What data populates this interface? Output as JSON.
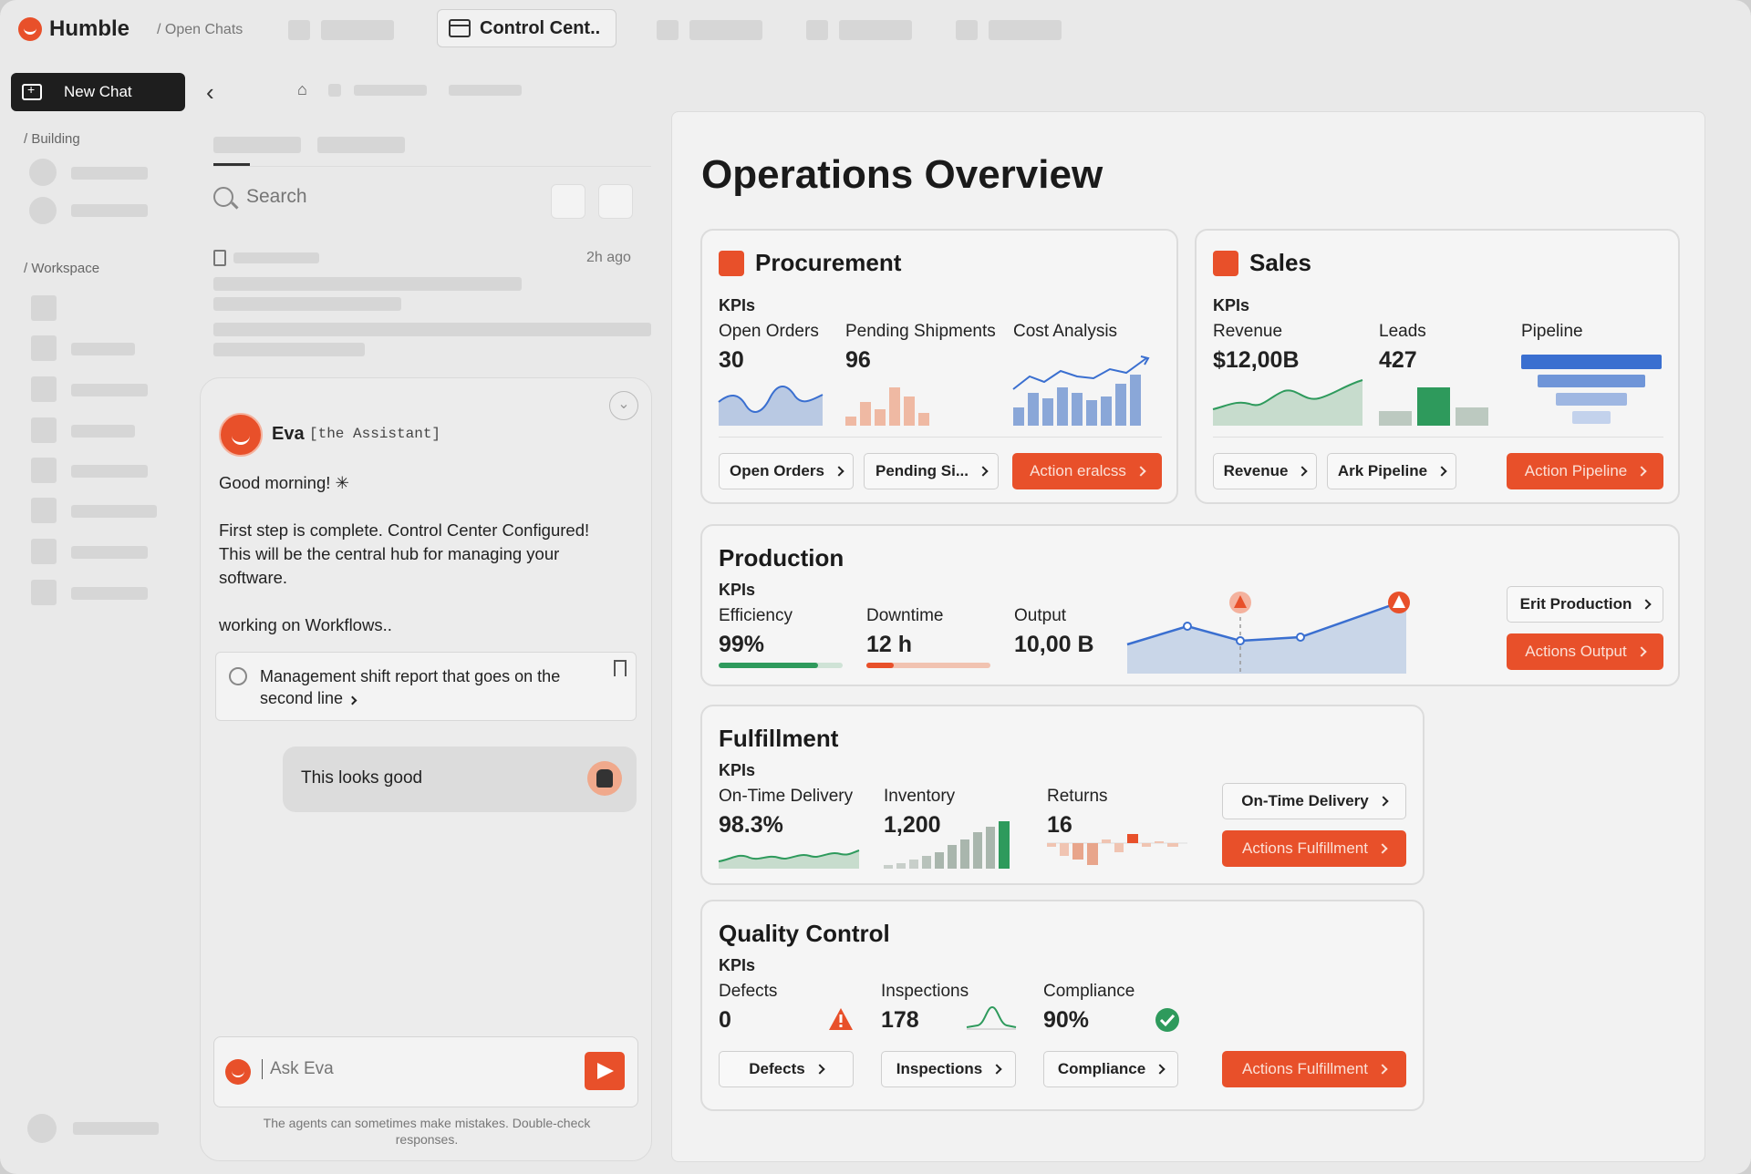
{
  "app": {
    "name": "Humble",
    "breadcrumb": "/ Open Chats",
    "active_tab": "Control Cent.."
  },
  "sidebar": {
    "new_chat": "New Chat",
    "section_building": "/ Building",
    "section_workspace": "/ Workspace"
  },
  "list": {
    "search_placeholder": "Search",
    "item_time": "2h ago"
  },
  "chat": {
    "assistant_name": "Eva",
    "assistant_role": "[the Assistant]",
    "greeting": "Good morning! ✳",
    "message": "First step is complete. Control Center Configured! This will be the central hub for managing your software.",
    "status": "working on Workflows..",
    "card_text": "Management shift report that goes on the second line",
    "user_message": "This looks good",
    "input_placeholder": "Ask Eva",
    "disclaimer": "The agents can sometimes make mistakes. Double-check responses."
  },
  "dashboard": {
    "title": "Operations Overview",
    "procurement": {
      "title": "Procurement",
      "kpis": "KPIs",
      "k1_label": "Open Orders",
      "k1_value": "30",
      "k2_label": "Pending Shipments",
      "k2_value": "96",
      "k3_label": "Cost Analysis",
      "b1": "Open Orders",
      "b2": "Pending Si...",
      "b3": "Action eralcss"
    },
    "sales": {
      "title": "Sales",
      "kpis": "KPIs",
      "k1_label": "Revenue",
      "k1_value": "$12,00B",
      "k2_label": "Leads",
      "k2_value": "427",
      "k3_label": "Pipeline",
      "b1": "Revenue",
      "b2": "Ark Pipeline",
      "b3": "Action Pipeline"
    },
    "production": {
      "title": "Production",
      "kpis": "KPIs",
      "k1_label": "Efficiency",
      "k1_value": "99%",
      "k1_fill": 0.8,
      "k2_label": "Downtime",
      "k2_value": "12 h",
      "k2_fill": 0.22,
      "k3_label": "Output",
      "k3_value": "10,00 B",
      "b1": "Erit Production",
      "b2": "Actions Output"
    },
    "fulfillment": {
      "title": "Fulfillment",
      "kpis": "KPIs",
      "k1_label": "On-Time Delivery",
      "k1_value": "98.3%",
      "k2_label": "Inventory",
      "k2_value": "1,200",
      "k3_label": "Returns",
      "k3_value": "16",
      "b1": "On-Time Delivery",
      "b2": "Actions Fulfillment"
    },
    "quality": {
      "title": "Quality Control",
      "kpis": "KPIs",
      "k1_label": "Defects",
      "k1_value": "0",
      "k2_label": "Inspections",
      "k2_value": "178",
      "k3_label": "Compliance",
      "k3_value": "90%",
      "b1": "Defects",
      "b2": "Inspections",
      "b3": "Compliance",
      "b4": "Actions Fulfillment"
    }
  },
  "colors": {
    "accent": "#e8502a",
    "green": "#2e9a5c",
    "blue": "#3a6fd0",
    "chart_blue": "#8aa7d8"
  }
}
